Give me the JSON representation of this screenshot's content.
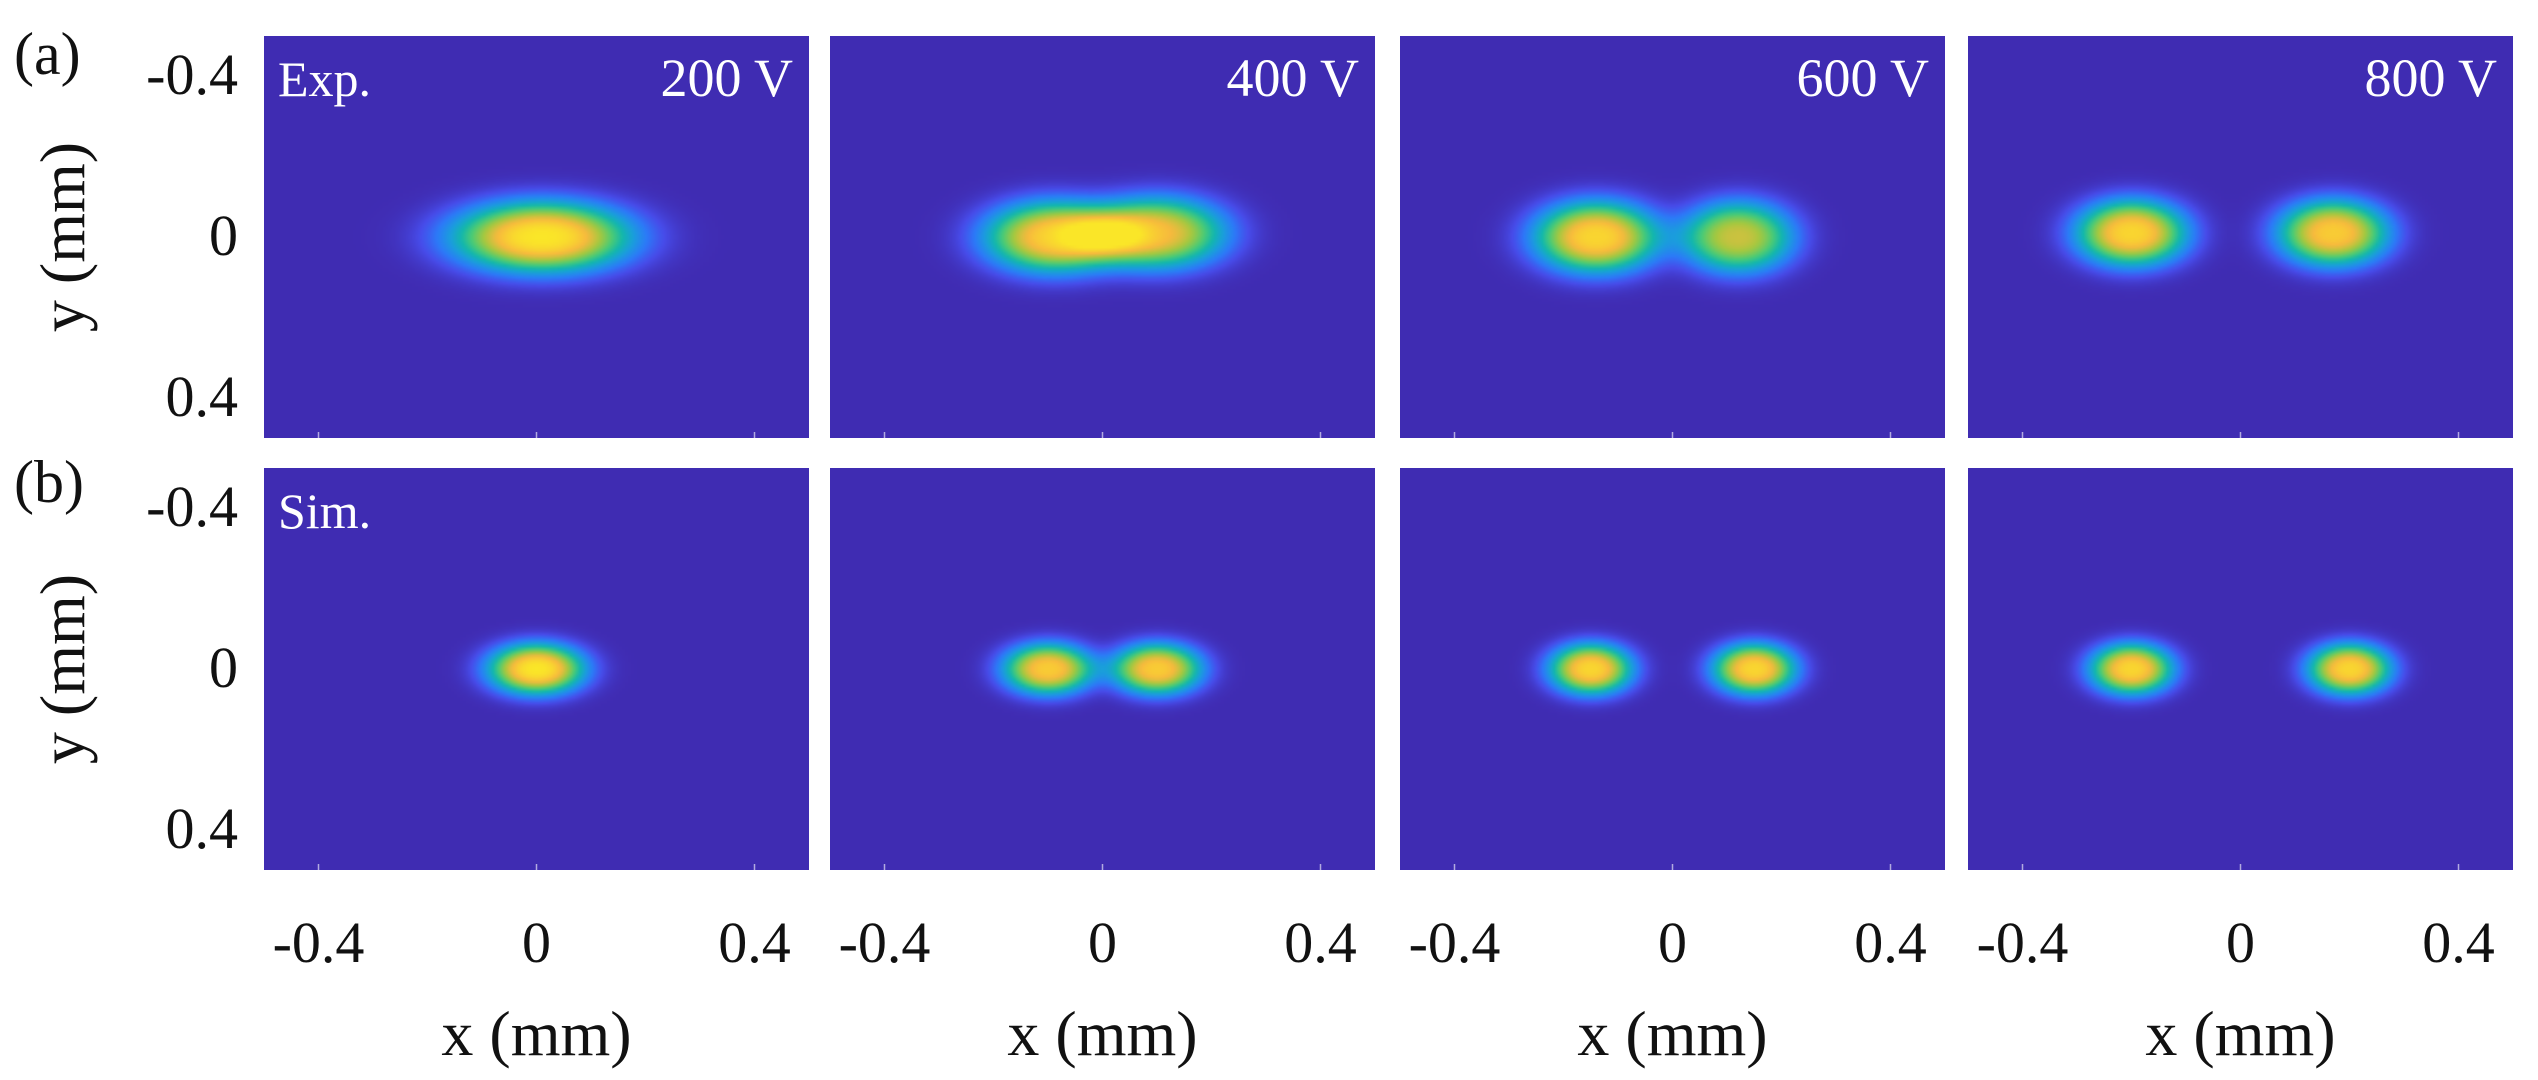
{
  "figure": {
    "row_labels": [
      "(a)",
      "(b)"
    ],
    "row_tags": [
      "Exp.",
      "Sim."
    ],
    "voltages": [
      "200 V",
      "400 V",
      "600 V",
      "800 V"
    ]
  },
  "chart_data": [
    {
      "type": "heatmap",
      "panel": "a",
      "voltage": "200 V",
      "label": "Exp.",
      "xlabel": "x (mm)",
      "ylabel": "y (mm)",
      "xlim": [
        -0.5,
        0.5
      ],
      "ylim": [
        -0.5,
        0.5
      ],
      "xticks": [
        "-0.4",
        "0",
        "0.4"
      ],
      "yticks": [
        "-0.4",
        "0",
        "0.4"
      ],
      "y_axis_reversed": true,
      "colormap": "parula",
      "spots": [
        {
          "x": 0.01,
          "y": 0.0,
          "sx": 0.13,
          "sy": 0.07,
          "a": 1.0
        }
      ]
    },
    {
      "type": "heatmap",
      "panel": "a",
      "voltage": "400 V",
      "xlabel": "x (mm)",
      "xlim": [
        -0.5,
        0.5
      ],
      "ylim": [
        -0.5,
        0.5
      ],
      "xticks": [
        "-0.4",
        "0",
        "0.4"
      ],
      "y_axis_reversed": true,
      "colormap": "parula",
      "spots": [
        {
          "x": -0.09,
          "y": 0.0,
          "sx": 0.1,
          "sy": 0.07,
          "a": 0.92
        },
        {
          "x": 0.1,
          "y": -0.01,
          "sx": 0.1,
          "sy": 0.07,
          "a": 0.86
        }
      ]
    },
    {
      "type": "heatmap",
      "panel": "a",
      "voltage": "600 V",
      "xlabel": "x (mm)",
      "xlim": [
        -0.5,
        0.5
      ],
      "ylim": [
        -0.5,
        0.5
      ],
      "xticks": [
        "-0.4",
        "0",
        "0.4"
      ],
      "y_axis_reversed": true,
      "colormap": "parula",
      "spots": [
        {
          "x": -0.14,
          "y": 0.0,
          "sx": 0.09,
          "sy": 0.07,
          "a": 0.95
        },
        {
          "x": 0.12,
          "y": 0.0,
          "sx": 0.08,
          "sy": 0.07,
          "a": 0.8
        }
      ]
    },
    {
      "type": "heatmap",
      "panel": "a",
      "voltage": "800 V",
      "xlabel": "x (mm)",
      "xlim": [
        -0.5,
        0.5
      ],
      "ylim": [
        -0.5,
        0.5
      ],
      "xticks": [
        "-0.4",
        "0",
        "0.4"
      ],
      "y_axis_reversed": true,
      "colormap": "parula",
      "spots": [
        {
          "x": -0.2,
          "y": -0.01,
          "sx": 0.08,
          "sy": 0.065,
          "a": 0.95
        },
        {
          "x": 0.17,
          "y": -0.01,
          "sx": 0.08,
          "sy": 0.065,
          "a": 0.92
        }
      ]
    },
    {
      "type": "heatmap",
      "panel": "b",
      "voltage": "200 V",
      "label": "Sim.",
      "xlabel": "x (mm)",
      "ylabel": "y (mm)",
      "xlim": [
        -0.5,
        0.5
      ],
      "ylim": [
        -0.5,
        0.5
      ],
      "xticks": [
        "-0.4",
        "0",
        "0.4"
      ],
      "yticks": [
        "-0.4",
        "0",
        "0.4"
      ],
      "y_axis_reversed": true,
      "colormap": "parula",
      "spots": [
        {
          "x": 0.0,
          "y": 0.0,
          "sx": 0.07,
          "sy": 0.05,
          "a": 1.0
        }
      ]
    },
    {
      "type": "heatmap",
      "panel": "b",
      "voltage": "400 V",
      "xlabel": "x (mm)",
      "xlim": [
        -0.5,
        0.5
      ],
      "ylim": [
        -0.5,
        0.5
      ],
      "xticks": [
        "-0.4",
        "0",
        "0.4"
      ],
      "y_axis_reversed": true,
      "colormap": "parula",
      "spots": [
        {
          "x": -0.1,
          "y": 0.0,
          "sx": 0.065,
          "sy": 0.05,
          "a": 0.92
        },
        {
          "x": 0.1,
          "y": 0.0,
          "sx": 0.065,
          "sy": 0.05,
          "a": 0.92
        }
      ]
    },
    {
      "type": "heatmap",
      "panel": "b",
      "voltage": "600 V",
      "xlabel": "x (mm)",
      "xlim": [
        -0.5,
        0.5
      ],
      "ylim": [
        -0.5,
        0.5
      ],
      "xticks": [
        "-0.4",
        "0",
        "0.4"
      ],
      "y_axis_reversed": true,
      "colormap": "parula",
      "spots": [
        {
          "x": -0.15,
          "y": 0.0,
          "sx": 0.06,
          "sy": 0.05,
          "a": 0.95
        },
        {
          "x": 0.15,
          "y": 0.0,
          "sx": 0.06,
          "sy": 0.05,
          "a": 0.95
        }
      ]
    },
    {
      "type": "heatmap",
      "panel": "b",
      "voltage": "800 V",
      "xlabel": "x (mm)",
      "xlim": [
        -0.5,
        0.5
      ],
      "ylim": [
        -0.5,
        0.5
      ],
      "xticks": [
        "-0.4",
        "0",
        "0.4"
      ],
      "y_axis_reversed": true,
      "colormap": "parula",
      "spots": [
        {
          "x": -0.2,
          "y": 0.0,
          "sx": 0.06,
          "sy": 0.05,
          "a": 0.95
        },
        {
          "x": 0.2,
          "y": 0.0,
          "sx": 0.06,
          "sy": 0.05,
          "a": 0.95
        }
      ]
    }
  ]
}
